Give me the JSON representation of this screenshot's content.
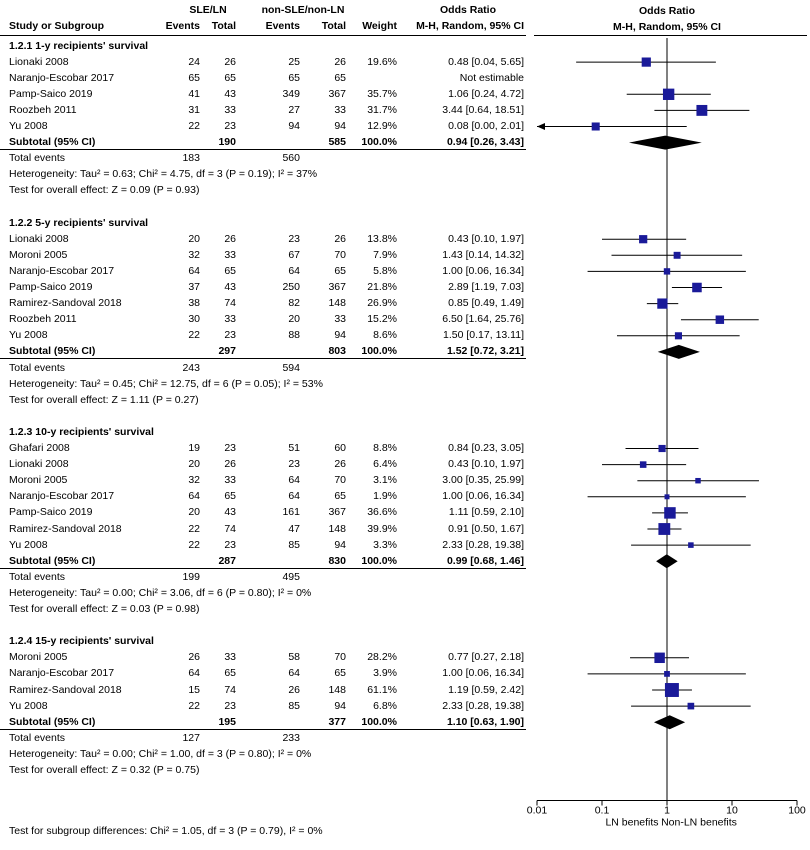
{
  "headers": {
    "study": "Study or Subgroup",
    "group1": "SLE/LN",
    "group2": "non-SLE/non-LN",
    "events": "Events",
    "total": "Total",
    "weight": "Weight",
    "or_title": "Odds Ratio",
    "or_method": "M-H, Random, 95% CI",
    "plot_title": "Odds Ratio",
    "plot_method": "M-H, Random, 95% CI"
  },
  "subgroups": [
    {
      "title": "1.2.1 1-y recipients' survival",
      "rows": [
        {
          "study": "Lionaki 2008",
          "e1": "24",
          "n1": "26",
          "e2": "25",
          "n2": "26",
          "weight": "19.6%",
          "ci": "0.48 [0.04, 5.65]"
        },
        {
          "study": "Naranjo-Escobar 2017",
          "e1": "65",
          "n1": "65",
          "e2": "65",
          "n2": "65",
          "weight": "",
          "ci": "Not estimable"
        },
        {
          "study": "Pamp-Saico 2019",
          "e1": "41",
          "n1": "43",
          "e2": "349",
          "n2": "367",
          "weight": "35.7%",
          "ci": "1.06 [0.24, 4.72]"
        },
        {
          "study": "Roozbeh 2011",
          "e1": "31",
          "n1": "33",
          "e2": "27",
          "n2": "33",
          "weight": "31.7%",
          "ci": "3.44 [0.64, 18.51]"
        },
        {
          "study": "Yu 2008",
          "e1": "22",
          "n1": "23",
          "e2": "94",
          "n2": "94",
          "weight": "12.9%",
          "ci": "0.08 [0.00, 2.01]"
        }
      ],
      "subtotal": {
        "label": "Subtotal (95% CI)",
        "n1": "190",
        "n2": "585",
        "weight": "100.0%",
        "ci": "0.94 [0.26, 3.43]"
      },
      "total_events": {
        "label": "Total events",
        "e1": "183",
        "e2": "560"
      },
      "heterogeneity": "Heterogeneity: Tau² = 0.63; Chi² = 4.75, df = 3 (P = 0.19); I² = 37%",
      "overall": "Test for overall effect: Z = 0.09 (P = 0.93)"
    },
    {
      "title": "1.2.2 5-y recipients' survival",
      "rows": [
        {
          "study": "Lionaki 2008",
          "e1": "20",
          "n1": "26",
          "e2": "23",
          "n2": "26",
          "weight": "13.8%",
          "ci": "0.43 [0.10, 1.97]"
        },
        {
          "study": "Moroni 2005",
          "e1": "32",
          "n1": "33",
          "e2": "67",
          "n2": "70",
          "weight": "7.9%",
          "ci": "1.43 [0.14, 14.32]"
        },
        {
          "study": "Naranjo-Escobar 2017",
          "e1": "64",
          "n1": "65",
          "e2": "64",
          "n2": "65",
          "weight": "5.8%",
          "ci": "1.00 [0.06, 16.34]"
        },
        {
          "study": "Pamp-Saico 2019",
          "e1": "37",
          "n1": "43",
          "e2": "250",
          "n2": "367",
          "weight": "21.8%",
          "ci": "2.89 [1.19, 7.03]"
        },
        {
          "study": "Ramirez-Sandoval 2018",
          "e1": "38",
          "n1": "74",
          "e2": "82",
          "n2": "148",
          "weight": "26.9%",
          "ci": "0.85 [0.49, 1.49]"
        },
        {
          "study": "Roozbeh 2011",
          "e1": "30",
          "n1": "33",
          "e2": "20",
          "n2": "33",
          "weight": "15.2%",
          "ci": "6.50 [1.64, 25.76]"
        },
        {
          "study": "Yu 2008",
          "e1": "22",
          "n1": "23",
          "e2": "88",
          "n2": "94",
          "weight": "8.6%",
          "ci": "1.50 [0.17, 13.11]"
        }
      ],
      "subtotal": {
        "label": "Subtotal (95% CI)",
        "n1": "297",
        "n2": "803",
        "weight": "100.0%",
        "ci": "1.52 [0.72, 3.21]"
      },
      "total_events": {
        "label": "Total events",
        "e1": "243",
        "e2": "594"
      },
      "heterogeneity": "Heterogeneity: Tau² = 0.45; Chi² = 12.75, df = 6 (P = 0.05); I² = 53%",
      "overall": "Test for overall effect: Z = 1.11 (P = 0.27)"
    },
    {
      "title": "1.2.3 10-y recipients' survival",
      "rows": [
        {
          "study": "Ghafari 2008",
          "e1": "19",
          "n1": "23",
          "e2": "51",
          "n2": "60",
          "weight": "8.8%",
          "ci": "0.84 [0.23, 3.05]"
        },
        {
          "study": "Lionaki 2008",
          "e1": "20",
          "n1": "26",
          "e2": "23",
          "n2": "26",
          "weight": "6.4%",
          "ci": "0.43 [0.10, 1.97]"
        },
        {
          "study": "Moroni 2005",
          "e1": "32",
          "n1": "33",
          "e2": "64",
          "n2": "70",
          "weight": "3.1%",
          "ci": "3.00 [0.35, 25.99]"
        },
        {
          "study": "Naranjo-Escobar 2017",
          "e1": "64",
          "n1": "65",
          "e2": "64",
          "n2": "65",
          "weight": "1.9%",
          "ci": "1.00 [0.06, 16.34]"
        },
        {
          "study": "Pamp-Saico 2019",
          "e1": "20",
          "n1": "43",
          "e2": "161",
          "n2": "367",
          "weight": "36.6%",
          "ci": "1.11 [0.59, 2.10]"
        },
        {
          "study": "Ramirez-Sandoval 2018",
          "e1": "22",
          "n1": "74",
          "e2": "47",
          "n2": "148",
          "weight": "39.9%",
          "ci": "0.91 [0.50, 1.67]"
        },
        {
          "study": "Yu 2008",
          "e1": "22",
          "n1": "23",
          "e2": "85",
          "n2": "94",
          "weight": "3.3%",
          "ci": "2.33 [0.28, 19.38]"
        }
      ],
      "subtotal": {
        "label": "Subtotal (95% CI)",
        "n1": "287",
        "n2": "830",
        "weight": "100.0%",
        "ci": "0.99 [0.68, 1.46]"
      },
      "total_events": {
        "label": "Total events",
        "e1": "199",
        "e2": "495"
      },
      "heterogeneity": "Heterogeneity: Tau² = 0.00; Chi² = 3.06, df = 6 (P = 0.80); I² = 0%",
      "overall": "Test for overall effect: Z = 0.03 (P = 0.98)"
    },
    {
      "title": "1.2.4 15-y recipients' survival",
      "rows": [
        {
          "study": "Moroni 2005",
          "e1": "26",
          "n1": "33",
          "e2": "58",
          "n2": "70",
          "weight": "28.2%",
          "ci": "0.77 [0.27, 2.18]"
        },
        {
          "study": "Naranjo-Escobar 2017",
          "e1": "64",
          "n1": "65",
          "e2": "64",
          "n2": "65",
          "weight": "3.9%",
          "ci": "1.00 [0.06, 16.34]"
        },
        {
          "study": "Ramirez-Sandoval 2018",
          "e1": "15",
          "n1": "74",
          "e2": "26",
          "n2": "148",
          "weight": "61.1%",
          "ci": "1.19 [0.59, 2.42]"
        },
        {
          "study": "Yu 2008",
          "e1": "22",
          "n1": "23",
          "e2": "85",
          "n2": "94",
          "weight": "6.8%",
          "ci": "2.33 [0.28, 19.38]"
        }
      ],
      "subtotal": {
        "label": "Subtotal (95% CI)",
        "n1": "195",
        "n2": "377",
        "weight": "100.0%",
        "ci": "1.10 [0.63, 1.90]"
      },
      "total_events": {
        "label": "Total events",
        "e1": "127",
        "e2": "233"
      },
      "heterogeneity": "Heterogeneity: Tau² = 0.00; Chi² = 1.00, df = 3 (P = 0.80); I² = 0%",
      "overall": "Test for overall effect: Z = 0.32 (P = 0.75)"
    }
  ],
  "subgroup_differences": "Test for subgroup differences: Chi² = 1.05, df = 3 (P = 0.79), I² = 0%",
  "colors": {
    "marker": "#1a1a99",
    "line": "#000000",
    "diamond": "#000000"
  },
  "chart_data": {
    "type": "forest",
    "x_scale": "log",
    "xlim": [
      0.01,
      100
    ],
    "reference_line": 1,
    "x_ticks": [
      0.01,
      0.1,
      1,
      10,
      100
    ],
    "x_tick_labels": [
      "0.01",
      "0.1",
      "1",
      "10",
      "100"
    ],
    "left_label": "LN benefits",
    "right_label": "Non-LN benefits",
    "groups": [
      {
        "name": "1.2.1 1-y recipients' survival",
        "studies": [
          {
            "name": "Lionaki 2008",
            "or": 0.48,
            "lo": 0.04,
            "hi": 5.65,
            "weight": 19.6
          },
          {
            "name": "Naranjo-Escobar 2017",
            "or": null,
            "lo": null,
            "hi": null,
            "weight": 0
          },
          {
            "name": "Pamp-Saico 2019",
            "or": 1.06,
            "lo": 0.24,
            "hi": 4.72,
            "weight": 35.7
          },
          {
            "name": "Roozbeh 2011",
            "or": 3.44,
            "lo": 0.64,
            "hi": 18.51,
            "weight": 31.7
          },
          {
            "name": "Yu 2008",
            "or": 0.08,
            "lo": 0.0,
            "hi": 2.01,
            "weight": 12.9
          }
        ],
        "pooled": {
          "or": 0.94,
          "lo": 0.26,
          "hi": 3.43
        }
      },
      {
        "name": "1.2.2 5-y recipients' survival",
        "studies": [
          {
            "name": "Lionaki 2008",
            "or": 0.43,
            "lo": 0.1,
            "hi": 1.97,
            "weight": 13.8
          },
          {
            "name": "Moroni 2005",
            "or": 1.43,
            "lo": 0.14,
            "hi": 14.32,
            "weight": 7.9
          },
          {
            "name": "Naranjo-Escobar 2017",
            "or": 1.0,
            "lo": 0.06,
            "hi": 16.34,
            "weight": 5.8
          },
          {
            "name": "Pamp-Saico 2019",
            "or": 2.89,
            "lo": 1.19,
            "hi": 7.03,
            "weight": 21.8
          },
          {
            "name": "Ramirez-Sandoval 2018",
            "or": 0.85,
            "lo": 0.49,
            "hi": 1.49,
            "weight": 26.9
          },
          {
            "name": "Roozbeh 2011",
            "or": 6.5,
            "lo": 1.64,
            "hi": 25.76,
            "weight": 15.2
          },
          {
            "name": "Yu 2008",
            "or": 1.5,
            "lo": 0.17,
            "hi": 13.11,
            "weight": 8.6
          }
        ],
        "pooled": {
          "or": 1.52,
          "lo": 0.72,
          "hi": 3.21
        }
      },
      {
        "name": "1.2.3 10-y recipients' survival",
        "studies": [
          {
            "name": "Ghafari 2008",
            "or": 0.84,
            "lo": 0.23,
            "hi": 3.05,
            "weight": 8.8
          },
          {
            "name": "Lionaki 2008",
            "or": 0.43,
            "lo": 0.1,
            "hi": 1.97,
            "weight": 6.4
          },
          {
            "name": "Moroni 2005",
            "or": 3.0,
            "lo": 0.35,
            "hi": 25.99,
            "weight": 3.1
          },
          {
            "name": "Naranjo-Escobar 2017",
            "or": 1.0,
            "lo": 0.06,
            "hi": 16.34,
            "weight": 1.9
          },
          {
            "name": "Pamp-Saico 2019",
            "or": 1.11,
            "lo": 0.59,
            "hi": 2.1,
            "weight": 36.6
          },
          {
            "name": "Ramirez-Sandoval 2018",
            "or": 0.91,
            "lo": 0.5,
            "hi": 1.67,
            "weight": 39.9
          },
          {
            "name": "Yu 2008",
            "or": 2.33,
            "lo": 0.28,
            "hi": 19.38,
            "weight": 3.3
          }
        ],
        "pooled": {
          "or": 0.99,
          "lo": 0.68,
          "hi": 1.46
        }
      },
      {
        "name": "1.2.4 15-y recipients' survival",
        "studies": [
          {
            "name": "Moroni 2005",
            "or": 0.77,
            "lo": 0.27,
            "hi": 2.18,
            "weight": 28.2
          },
          {
            "name": "Naranjo-Escobar 2017",
            "or": 1.0,
            "lo": 0.06,
            "hi": 16.34,
            "weight": 3.9
          },
          {
            "name": "Ramirez-Sandoval 2018",
            "or": 1.19,
            "lo": 0.59,
            "hi": 2.42,
            "weight": 61.1
          },
          {
            "name": "Yu 2008",
            "or": 2.33,
            "lo": 0.28,
            "hi": 19.38,
            "weight": 6.8
          }
        ],
        "pooled": {
          "or": 1.1,
          "lo": 0.63,
          "hi": 1.9
        }
      }
    ]
  }
}
